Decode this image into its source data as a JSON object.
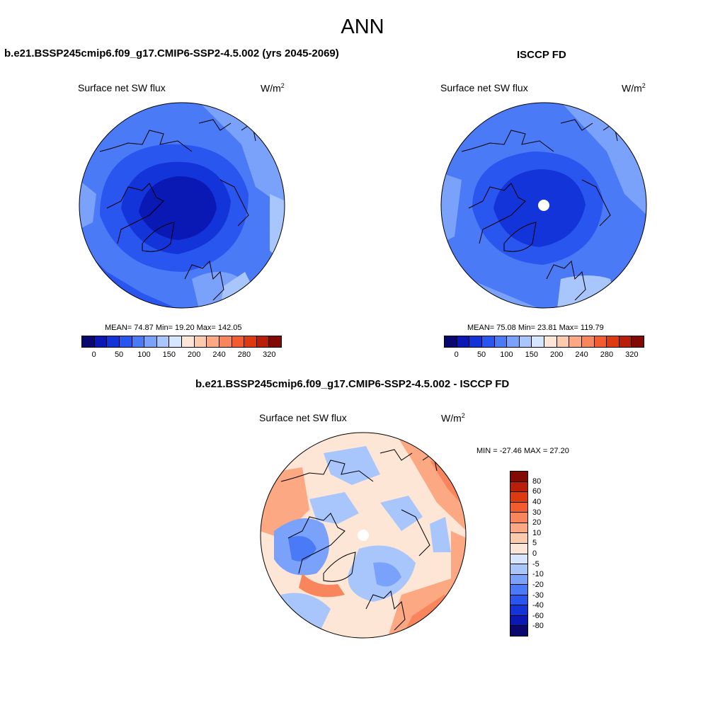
{
  "figure": {
    "title": "ANN"
  },
  "panel_left": {
    "header": "b.e21.BSSP245cmip6.f09_g17.CMIP6-SSP2-4.5.002 (yrs 2045-2069)",
    "variable": "Surface net SW flux",
    "units": "W/m",
    "units_exp": "2",
    "stats": "MEAN=  74.87  Min=  19.20  Max= 142.05"
  },
  "panel_right": {
    "header": "ISCCP FD",
    "variable": "Surface net SW flux",
    "units": "W/m",
    "units_exp": "2",
    "stats": "MEAN=  75.08  Min=  23.81  Max= 119.79"
  },
  "panel_diff": {
    "header": "b.e21.BSSP245cmip6.f09_g17.CMIP6-SSP2-4.5.002 - ISCCP FD",
    "variable": "Surface net SW flux",
    "units": "W/m",
    "units_exp": "2",
    "stats": "MIN = -27.46 MAX =  27.20"
  },
  "colorbar_main": {
    "colors": [
      "#08086e",
      "#0a18b4",
      "#1234d8",
      "#2a56f0",
      "#4a7af6",
      "#7aa2fa",
      "#a8c6fc",
      "#d6e6fe",
      "#fde6d6",
      "#fccbae",
      "#fba883",
      "#f9855c",
      "#f25c2e",
      "#de3a10",
      "#b81e08",
      "#820a02"
    ],
    "labels": [
      "0",
      "50",
      "100",
      "150",
      "200",
      "240",
      "280",
      "320"
    ]
  },
  "colorbar_diff": {
    "colors": [
      "#820a02",
      "#b81e08",
      "#de3a10",
      "#f25c2e",
      "#f9855c",
      "#fba883",
      "#fccbae",
      "#fde6d6",
      "#d6e6fe",
      "#a8c6fc",
      "#7aa2fa",
      "#4a7af6",
      "#2a56f0",
      "#1234d8",
      "#0a18b4",
      "#08086e"
    ],
    "labels": [
      "80",
      "60",
      "40",
      "30",
      "20",
      "10",
      "5",
      "0",
      "-5",
      "-10",
      "-20",
      "-30",
      "-40",
      "-60",
      "-80"
    ]
  }
}
